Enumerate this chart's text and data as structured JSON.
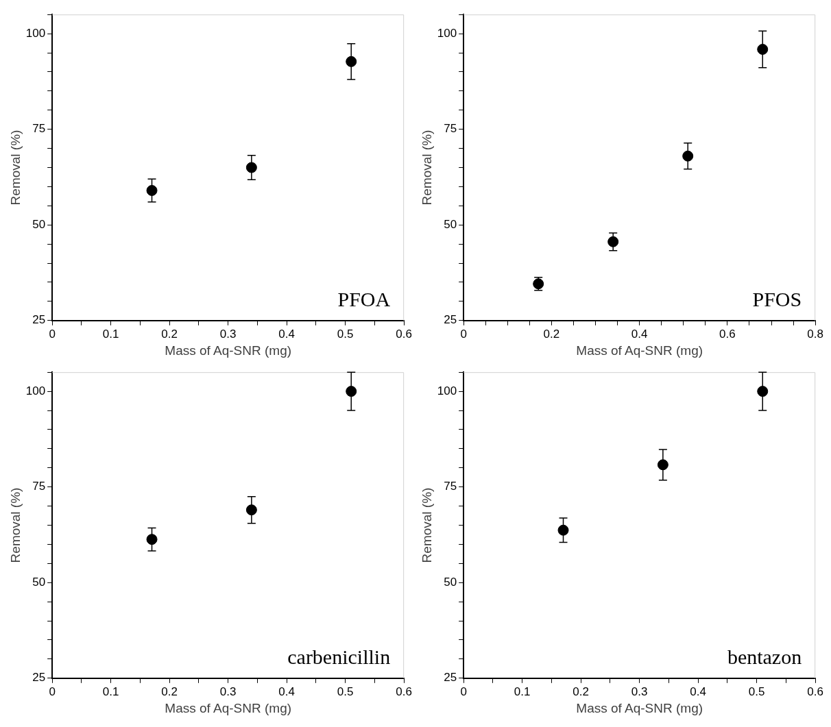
{
  "chart_data": [
    {
      "type": "scatter",
      "x": [
        0.17,
        0.34,
        0.51
      ],
      "values": [
        59,
        65,
        92.7
      ],
      "errors": [
        3,
        3.2,
        4.7
      ],
      "color": "#000000",
      "marker": "circle",
      "xlabel": "Mass of Aq-SNR (mg)",
      "ylabel": "Removal (%)",
      "annotations": [
        "PFOA"
      ],
      "xlim": [
        0,
        0.6
      ],
      "xticks": [
        0,
        {
          "value": 0.05,
          "label": null
        },
        0.1,
        {
          "value": 0.15,
          "label": null
        },
        0.2,
        {
          "value": 0.25,
          "label": null
        },
        0.3,
        {
          "value": 0.35,
          "label": null
        },
        0.4,
        {
          "value": 0.45,
          "label": null
        },
        0.5,
        {
          "value": 0.55,
          "label": null
        },
        0.6
      ],
      "ylim": [
        25,
        105
      ],
      "yticks": [
        25,
        {
          "value": 30,
          "label": null
        },
        {
          "value": 35,
          "label": null
        },
        {
          "value": 40,
          "label": null
        },
        {
          "value": 45,
          "label": null
        },
        50,
        {
          "value": 55,
          "label": null
        },
        {
          "value": 60,
          "label": null
        },
        {
          "value": 65,
          "label": null
        },
        {
          "value": 70,
          "label": null
        },
        75,
        {
          "value": 80,
          "label": null
        },
        {
          "value": 85,
          "label": null
        },
        {
          "value": 90,
          "label": null
        },
        {
          "value": 95,
          "label": null
        },
        100,
        {
          "value": 105,
          "label": null
        }
      ]
    },
    {
      "type": "scatter",
      "x": [
        0.17,
        0.34,
        0.51,
        0.68
      ],
      "values": [
        34.6,
        45.6,
        68,
        95.9
      ],
      "errors": [
        1.7,
        2.3,
        3.4,
        4.8
      ],
      "color": "#000000",
      "marker": "circle",
      "xlabel": "Mass of Aq-SNR (mg)",
      "ylabel": "Removal (%)",
      "annotations": [
        "PFOS"
      ],
      "xlim": [
        0,
        0.8
      ],
      "xticks": [
        0,
        {
          "value": 0.05,
          "label": null
        },
        {
          "value": 0.1,
          "label": null
        },
        {
          "value": 0.15,
          "label": null
        },
        0.2,
        {
          "value": 0.25,
          "label": null
        },
        {
          "value": 0.3,
          "label": null
        },
        {
          "value": 0.35,
          "label": null
        },
        0.4,
        {
          "value": 0.45,
          "label": null
        },
        {
          "value": 0.5,
          "label": null
        },
        {
          "value": 0.55,
          "label": null
        },
        0.6,
        {
          "value": 0.65,
          "label": null
        },
        {
          "value": 0.7,
          "label": null
        },
        {
          "value": 0.75,
          "label": null
        },
        0.8
      ],
      "ylim": [
        25,
        105
      ],
      "yticks": [
        25,
        {
          "value": 30,
          "label": null
        },
        {
          "value": 35,
          "label": null
        },
        {
          "value": 40,
          "label": null
        },
        {
          "value": 45,
          "label": null
        },
        50,
        {
          "value": 55,
          "label": null
        },
        {
          "value": 60,
          "label": null
        },
        {
          "value": 65,
          "label": null
        },
        {
          "value": 70,
          "label": null
        },
        75,
        {
          "value": 80,
          "label": null
        },
        {
          "value": 85,
          "label": null
        },
        {
          "value": 90,
          "label": null
        },
        {
          "value": 95,
          "label": null
        },
        100,
        {
          "value": 105,
          "label": null
        }
      ]
    },
    {
      "type": "scatter",
      "x": [
        0.17,
        0.34,
        0.51
      ],
      "values": [
        61.3,
        69,
        100
      ],
      "errors": [
        3,
        3.5,
        5
      ],
      "color": "#000000",
      "marker": "circle",
      "xlabel": "Mass of Aq-SNR (mg)",
      "ylabel": "Removal (%)",
      "annotations": [
        "carbenicillin"
      ],
      "xlim": [
        0,
        0.6
      ],
      "xticks": [
        0,
        {
          "value": 0.05,
          "label": null
        },
        0.1,
        {
          "value": 0.15,
          "label": null
        },
        0.2,
        {
          "value": 0.25,
          "label": null
        },
        0.3,
        {
          "value": 0.35,
          "label": null
        },
        0.4,
        {
          "value": 0.45,
          "label": null
        },
        0.5,
        {
          "value": 0.55,
          "label": null
        },
        0.6
      ],
      "ylim": [
        25,
        105
      ],
      "yticks": [
        25,
        {
          "value": 30,
          "label": null
        },
        {
          "value": 35,
          "label": null
        },
        {
          "value": 40,
          "label": null
        },
        {
          "value": 45,
          "label": null
        },
        50,
        {
          "value": 55,
          "label": null
        },
        {
          "value": 60,
          "label": null
        },
        {
          "value": 65,
          "label": null
        },
        {
          "value": 70,
          "label": null
        },
        75,
        {
          "value": 80,
          "label": null
        },
        {
          "value": 85,
          "label": null
        },
        {
          "value": 90,
          "label": null
        },
        {
          "value": 95,
          "label": null
        },
        100,
        {
          "value": 105,
          "label": null
        }
      ]
    },
    {
      "type": "scatter",
      "x": [
        0.17,
        0.34,
        0.51
      ],
      "values": [
        63.7,
        80.8,
        100
      ],
      "errors": [
        3.2,
        4,
        5
      ],
      "color": "#000000",
      "marker": "circle",
      "xlabel": "Mass of Aq-SNR (mg)",
      "ylabel": "Removal (%)",
      "annotations": [
        "bentazon"
      ],
      "xlim": [
        0,
        0.6
      ],
      "xticks": [
        0,
        {
          "value": 0.05,
          "label": null
        },
        0.1,
        {
          "value": 0.15,
          "label": null
        },
        0.2,
        {
          "value": 0.25,
          "label": null
        },
        0.3,
        {
          "value": 0.35,
          "label": null
        },
        0.4,
        {
          "value": 0.45,
          "label": null
        },
        0.5,
        {
          "value": 0.55,
          "label": null
        },
        0.6
      ],
      "ylim": [
        25,
        105
      ],
      "yticks": [
        25,
        {
          "value": 30,
          "label": null
        },
        {
          "value": 35,
          "label": null
        },
        {
          "value": 40,
          "label": null
        },
        {
          "value": 45,
          "label": null
        },
        50,
        {
          "value": 55,
          "label": null
        },
        {
          "value": 60,
          "label": null
        },
        {
          "value": 65,
          "label": null
        },
        {
          "value": 70,
          "label": null
        },
        75,
        {
          "value": 80,
          "label": null
        },
        {
          "value": 85,
          "label": null
        },
        {
          "value": 90,
          "label": null
        },
        {
          "value": 95,
          "label": null
        },
        100,
        {
          "value": 105,
          "label": null
        }
      ]
    }
  ]
}
